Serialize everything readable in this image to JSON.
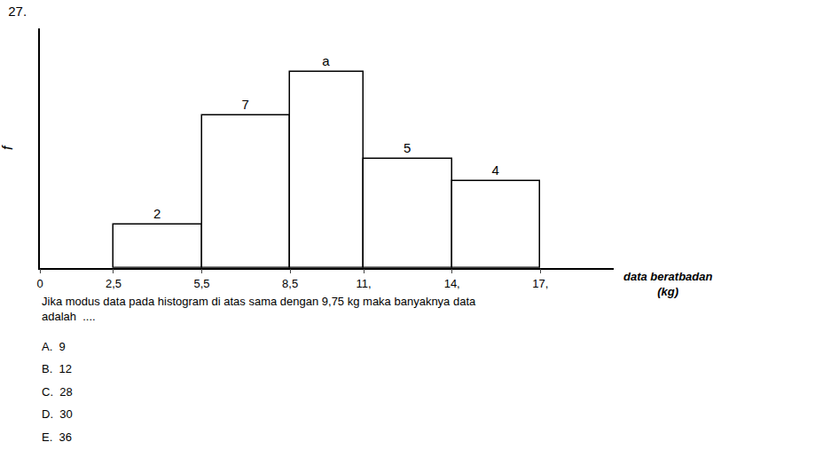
{
  "chart_data": {
    "type": "histogram",
    "title": "27.",
    "bins": [
      2.5,
      5.5,
      8.5,
      11.0,
      14.0,
      17.0
    ],
    "values": [
      2,
      7,
      9,
      5,
      4
    ],
    "value_labels": [
      "2",
      "7",
      "a",
      "5",
      "4"
    ],
    "data_labels": true,
    "color": "#ffffff",
    "xlabel": "data beratbadan\n(kg)",
    "ylabel": "f",
    "xlim": [
      0,
      19.5
    ],
    "ylim": [
      0,
      11
    ],
    "xticks": [
      0,
      {
        "value": 2.5,
        "label": "2,5"
      },
      {
        "value": 5.5,
        "label": "5,5"
      },
      {
        "value": 8.5,
        "label": "8,5"
      },
      {
        "value": 11.0,
        "label": "11,"
      },
      {
        "value": 14.0,
        "label": "14,"
      },
      {
        "value": 17.0,
        "label": "17,"
      }
    ],
    "tick_labels": "x",
    "grid": false,
    "annotations": [
      "Jika modus data pada histogram di atas sama dengan 9,75 kg maka banyaknya data\nadalah  ....",
      "A.  9",
      "B.  12",
      "C.  28",
      "D.  30",
      "E.  36"
    ]
  }
}
